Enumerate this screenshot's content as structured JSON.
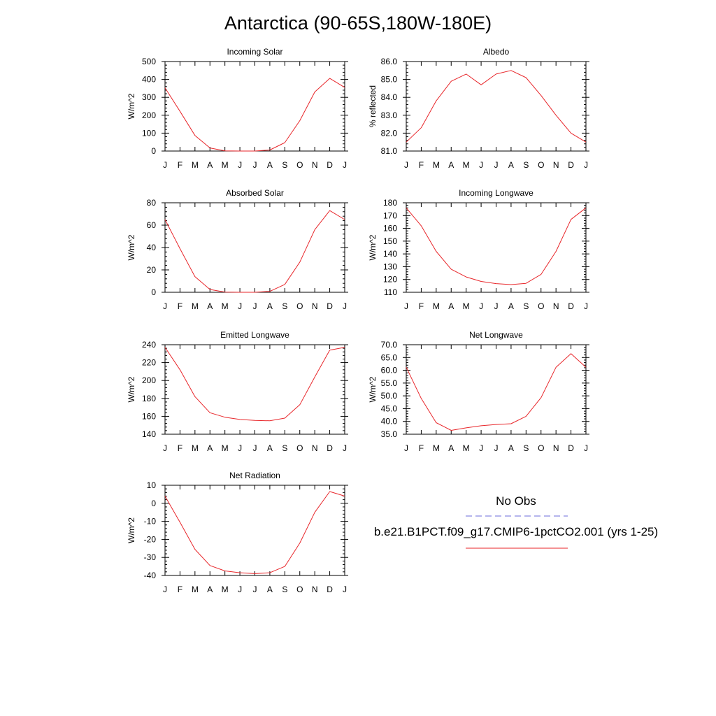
{
  "page_title": "Antarctica (90-65S,180W-180E)",
  "colors": {
    "model_line": "#e8262a",
    "obs_line": "#6b6bdb",
    "axis": "#000000"
  },
  "legend": {
    "obs_label": "No Obs",
    "model_label": "b.e21.B1PCT.f09_g17.CMIP6-1pctCO2.001 (yrs 1-25)"
  },
  "chart_data": [
    {
      "type": "line",
      "title": "Incoming Solar",
      "ylabel": "W/m^2",
      "categories": [
        "J",
        "F",
        "M",
        "A",
        "M",
        "J",
        "J",
        "A",
        "S",
        "O",
        "N",
        "D",
        "J"
      ],
      "ylim": [
        0,
        500
      ],
      "yticks": [
        0,
        100,
        200,
        300,
        400,
        500
      ],
      "ytick_labels": [
        "0",
        "100",
        "200",
        "300",
        "400",
        "500"
      ],
      "series": [
        {
          "values": [
            353,
            222,
            87,
            17,
            1,
            0,
            0,
            6,
            47,
            170,
            330,
            406,
            355
          ]
        }
      ]
    },
    {
      "type": "line",
      "title": "Albedo",
      "ylabel": "% reflected",
      "categories": [
        "J",
        "F",
        "M",
        "A",
        "M",
        "J",
        "J",
        "A",
        "S",
        "O",
        "N",
        "D",
        "J"
      ],
      "ylim": [
        81.0,
        86.0
      ],
      "yticks": [
        81.0,
        82.0,
        83.0,
        84.0,
        85.0,
        86.0
      ],
      "ytick_labels": [
        "81.0",
        "82.0",
        "83.0",
        "84.0",
        "85.0",
        "86.0"
      ],
      "series": [
        {
          "values": [
            81.5,
            82.3,
            83.8,
            84.9,
            85.3,
            84.7,
            85.3,
            85.5,
            85.1,
            84.1,
            83.0,
            82.0,
            81.5
          ]
        }
      ]
    },
    {
      "type": "line",
      "title": "Absorbed Solar",
      "ylabel": "W/m^2",
      "categories": [
        "J",
        "F",
        "M",
        "A",
        "M",
        "J",
        "J",
        "A",
        "S",
        "O",
        "N",
        "D",
        "J"
      ],
      "ylim": [
        0,
        80
      ],
      "yticks": [
        0,
        20,
        40,
        60,
        80
      ],
      "ytick_labels": [
        "0",
        "20",
        "40",
        "60",
        "80"
      ],
      "series": [
        {
          "values": [
            65,
            39,
            14,
            2.5,
            0.2,
            0,
            0,
            0.8,
            7,
            27,
            56,
            73,
            65
          ]
        }
      ]
    },
    {
      "type": "line",
      "title": "Incoming Longwave",
      "ylabel": "W/m^2",
      "categories": [
        "J",
        "F",
        "M",
        "A",
        "M",
        "J",
        "J",
        "A",
        "S",
        "O",
        "N",
        "D",
        "J"
      ],
      "ylim": [
        110,
        180
      ],
      "yticks": [
        110,
        120,
        130,
        140,
        150,
        160,
        170,
        180
      ],
      "ytick_labels": [
        "110",
        "120",
        "130",
        "140",
        "150",
        "160",
        "170",
        "180"
      ],
      "series": [
        {
          "values": [
            176,
            162,
            142,
            128,
            122,
            118.5,
            116.8,
            116,
            117,
            124,
            142,
            167,
            176
          ]
        }
      ]
    },
    {
      "type": "line",
      "title": "Emitted Longwave",
      "ylabel": "W/m^2",
      "categories": [
        "J",
        "F",
        "M",
        "A",
        "M",
        "J",
        "J",
        "A",
        "S",
        "O",
        "N",
        "D",
        "J"
      ],
      "ylim": [
        140,
        240
      ],
      "yticks": [
        140,
        160,
        180,
        200,
        220,
        240
      ],
      "ytick_labels": [
        "140",
        "160",
        "180",
        "200",
        "220",
        "240"
      ],
      "series": [
        {
          "values": [
            237,
            212,
            182,
            164,
            159,
            156.5,
            155.5,
            155,
            158,
            173,
            204,
            234,
            237
          ]
        }
      ]
    },
    {
      "type": "line",
      "title": "Net Longwave",
      "ylabel": "W/m^2",
      "categories": [
        "J",
        "F",
        "M",
        "A",
        "M",
        "J",
        "J",
        "A",
        "S",
        "O",
        "N",
        "D",
        "J"
      ],
      "ylim": [
        35.0,
        70.0
      ],
      "yticks": [
        35.0,
        40.0,
        45.0,
        50.0,
        55.0,
        60.0,
        65.0,
        70.0
      ],
      "ytick_labels": [
        "35.0",
        "40.0",
        "45.0",
        "50.0",
        "55.0",
        "60.0",
        "65.0",
        "70.0"
      ],
      "series": [
        {
          "values": [
            61.2,
            49.0,
            39.5,
            36.5,
            37.5,
            38.3,
            38.8,
            39.1,
            42.0,
            49.3,
            61.2,
            66.5,
            61.2
          ]
        }
      ]
    },
    {
      "type": "line",
      "title": "Net Radiation",
      "ylabel": "W/m^2",
      "categories": [
        "J",
        "F",
        "M",
        "A",
        "M",
        "J",
        "J",
        "A",
        "S",
        "O",
        "N",
        "D",
        "J"
      ],
      "ylim": [
        -40,
        10
      ],
      "yticks": [
        -40,
        -30,
        -20,
        -10,
        0,
        10
      ],
      "ytick_labels": [
        "-40",
        "-30",
        "-20",
        "-10",
        "0",
        "10"
      ],
      "series": [
        {
          "values": [
            4,
            -10.5,
            -25.5,
            -34.5,
            -37.5,
            -38.5,
            -39,
            -38.5,
            -35,
            -22,
            -5,
            6.5,
            4
          ]
        }
      ]
    }
  ]
}
